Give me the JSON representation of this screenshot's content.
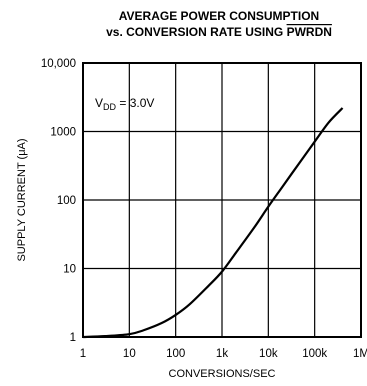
{
  "chart_data": {
    "type": "line",
    "title_line1": "AVERAGE POWER CONSUMPTION",
    "title_line2_prefix": "vs. CONVERSION RATE USING ",
    "title_line2_overbar": "PWRDN",
    "xlabel": "CONVERSIONS/SEC",
    "ylabel": "SUPPLY CURRENT (μA)",
    "x_scale": "log",
    "y_scale": "log",
    "xlim": [
      1,
      1000000
    ],
    "ylim": [
      1,
      10000
    ],
    "x_ticks": [
      {
        "value": 1,
        "label": "1"
      },
      {
        "value": 10,
        "label": "10"
      },
      {
        "value": 100,
        "label": "100"
      },
      {
        "value": 1000,
        "label": "1k"
      },
      {
        "value": 10000,
        "label": "10k"
      },
      {
        "value": 100000,
        "label": "100k"
      },
      {
        "value": 1000000,
        "label": "1M"
      }
    ],
    "y_ticks": [
      {
        "value": 1,
        "label": "1"
      },
      {
        "value": 10,
        "label": "10"
      },
      {
        "value": 100,
        "label": "100"
      },
      {
        "value": 1000,
        "label": "1000"
      },
      {
        "value": 10000,
        "label": "10,000"
      }
    ],
    "grid": true,
    "annotation": {
      "main": "V",
      "subscript": "DD",
      "rest": " = 3.0V"
    },
    "series": [
      {
        "x": [
          1,
          3,
          10,
          20,
          50,
          100,
          200,
          500,
          1000,
          2000,
          5000,
          10000,
          20000,
          50000,
          100000,
          200000,
          400000
        ],
        "y": [
          1.0,
          1.03,
          1.1,
          1.25,
          1.6,
          2.1,
          3.0,
          5.5,
          9.0,
          17.0,
          40.0,
          80.0,
          155.0,
          370.0,
          710.0,
          1350.0,
          2200.0
        ]
      }
    ]
  }
}
